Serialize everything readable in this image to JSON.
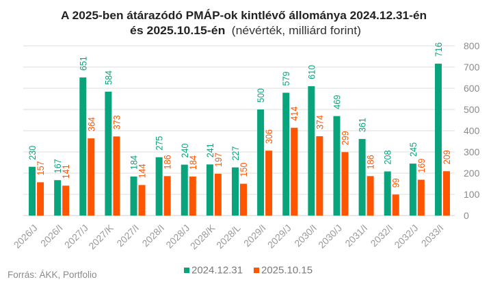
{
  "chart_data": {
    "type": "bar",
    "title": "A 2025-ben átárazódó PMÁP-ok kintlévő állománya 2024.12.31-én",
    "title_line2": "és 2025.10.15-én",
    "subtitle": "(névérték, milliárd forint)",
    "xlabel": "",
    "ylabel": "",
    "categories": [
      "2026/J",
      "2026/I",
      "2027/J",
      "2027/K",
      "2027/I",
      "2028/I",
      "2028/J",
      "2028/K",
      "2028/L",
      "2029/I",
      "2029/J",
      "2030/I",
      "2030/J",
      "2031/I",
      "2032/I",
      "2032/J",
      "2033/I"
    ],
    "series": [
      {
        "name": "2024.12.31",
        "color": "#0aa47c",
        "values": [
          230,
          167,
          651,
          584,
          184,
          275,
          240,
          241,
          227,
          500,
          579,
          610,
          469,
          361,
          208,
          245,
          716
        ]
      },
      {
        "name": "2025.10.15",
        "color": "#ff5500",
        "values": [
          157,
          141,
          364,
          373,
          144,
          186,
          184,
          197,
          150,
          306,
          414,
          374,
          299,
          186,
          99,
          169,
          209
        ]
      }
    ],
    "ylim": [
      0,
      800
    ],
    "yticks": [
      0,
      100,
      200,
      300,
      400,
      500,
      600,
      700,
      800
    ],
    "y_axis_side": "right",
    "grid": true,
    "data_labels": true,
    "legend_position": "bottom-center",
    "source": "Forrás: ÁKK, Portfolio"
  }
}
